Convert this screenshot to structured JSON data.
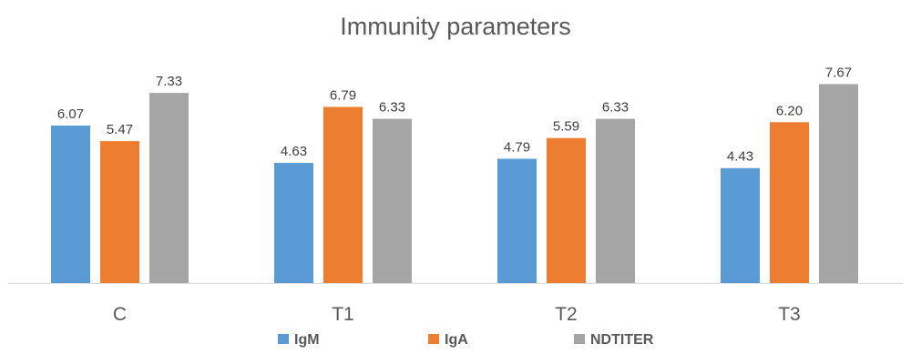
{
  "chart_data": {
    "type": "bar",
    "title": "Immunity parameters",
    "xlabel": "",
    "ylabel": "",
    "categories": [
      "C",
      "T1",
      "T2",
      "T3"
    ],
    "series": [
      {
        "name": "IgM",
        "values": [
          6.07,
          4.63,
          4.79,
          4.43
        ],
        "labels": [
          "6.07",
          "4.63",
          "4.79",
          "4.43"
        ],
        "color": "#5B9BD5"
      },
      {
        "name": "IgA",
        "values": [
          5.47,
          6.79,
          5.59,
          6.2
        ],
        "labels": [
          "5.47",
          "6.79",
          "5.59",
          "6.20"
        ],
        "color": "#ED7D31"
      },
      {
        "name": "NDTITER",
        "values": [
          7.33,
          6.33,
          6.33,
          7.67
        ],
        "labels": [
          "7.33",
          "6.33",
          "6.33",
          "7.67"
        ],
        "color": "#A5A5A5"
      }
    ],
    "ylim": [
      0,
      8
    ],
    "grid": false,
    "legend": "bottom"
  }
}
